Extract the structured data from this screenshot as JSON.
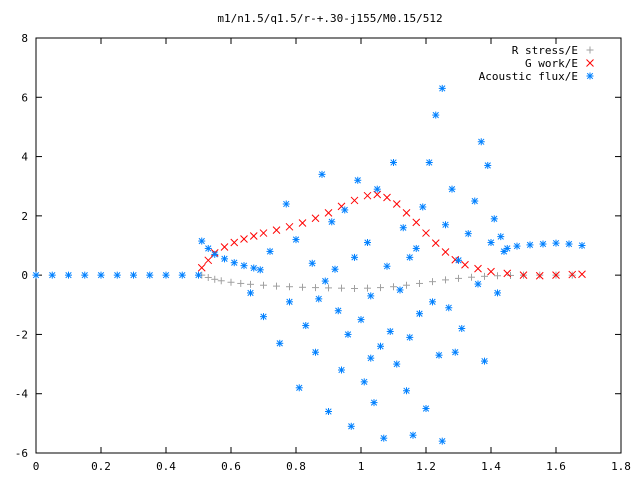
{
  "chart_data": {
    "type": "scatter",
    "title": "m1/n1.5/q1.5/r-+.30-j155/M0.15/512",
    "xlabel": "",
    "ylabel": "",
    "xlim": [
      0,
      1.8
    ],
    "ylim": [
      -6,
      8
    ],
    "x_ticks": [
      "0",
      "0.2",
      "0.4",
      "0.6",
      "0.8",
      "1",
      "1.2",
      "1.4",
      "1.6",
      "1.8"
    ],
    "y_ticks": [
      "-6",
      "-4",
      "-2",
      "0",
      "2",
      "4",
      "6",
      "8"
    ],
    "grid": false,
    "legend_position": "top-right",
    "series": [
      {
        "name": "R stress/E",
        "marker": "plus",
        "color": "#a0a0a0",
        "points": [
          [
            0.51,
            0.0
          ],
          [
            0.53,
            -0.08
          ],
          [
            0.55,
            -0.14
          ],
          [
            0.57,
            -0.19
          ],
          [
            0.6,
            -0.24
          ],
          [
            0.63,
            -0.28
          ],
          [
            0.66,
            -0.31
          ],
          [
            0.7,
            -0.34
          ],
          [
            0.74,
            -0.37
          ],
          [
            0.78,
            -0.39
          ],
          [
            0.82,
            -0.41
          ],
          [
            0.86,
            -0.42
          ],
          [
            0.9,
            -0.43
          ],
          [
            0.94,
            -0.44
          ],
          [
            0.98,
            -0.45
          ],
          [
            1.02,
            -0.44
          ],
          [
            1.06,
            -0.42
          ],
          [
            1.1,
            -0.39
          ],
          [
            1.14,
            -0.34
          ],
          [
            1.18,
            -0.28
          ],
          [
            1.22,
            -0.22
          ],
          [
            1.26,
            -0.16
          ],
          [
            1.3,
            -0.11
          ],
          [
            1.34,
            -0.07
          ],
          [
            1.38,
            -0.04
          ],
          [
            1.42,
            -0.02
          ],
          [
            1.46,
            -0.01
          ],
          [
            1.5,
            0.0
          ],
          [
            1.55,
            0.0
          ],
          [
            1.6,
            0.0
          ],
          [
            1.65,
            0.0
          ]
        ]
      },
      {
        "name": "G work/E",
        "marker": "cross",
        "color": "#ff0000",
        "points": [
          [
            0.51,
            0.25
          ],
          [
            0.53,
            0.5
          ],
          [
            0.55,
            0.75
          ],
          [
            0.58,
            0.95
          ],
          [
            0.61,
            1.1
          ],
          [
            0.64,
            1.22
          ],
          [
            0.67,
            1.32
          ],
          [
            0.7,
            1.42
          ],
          [
            0.74,
            1.52
          ],
          [
            0.78,
            1.63
          ],
          [
            0.82,
            1.76
          ],
          [
            0.86,
            1.92
          ],
          [
            0.9,
            2.1
          ],
          [
            0.94,
            2.32
          ],
          [
            0.98,
            2.52
          ],
          [
            1.02,
            2.68
          ],
          [
            1.05,
            2.72
          ],
          [
            1.08,
            2.62
          ],
          [
            1.11,
            2.4
          ],
          [
            1.14,
            2.1
          ],
          [
            1.17,
            1.78
          ],
          [
            1.2,
            1.42
          ],
          [
            1.23,
            1.08
          ],
          [
            1.26,
            0.78
          ],
          [
            1.29,
            0.52
          ],
          [
            1.32,
            0.35
          ],
          [
            1.36,
            0.22
          ],
          [
            1.4,
            0.12
          ],
          [
            1.45,
            0.06
          ],
          [
            1.5,
            0.0
          ],
          [
            1.55,
            -0.02
          ],
          [
            1.6,
            0.0
          ],
          [
            1.65,
            0.02
          ],
          [
            1.68,
            0.03
          ]
        ]
      },
      {
        "name": "Acoustic flux/E",
        "marker": "star",
        "color": "#0080ff",
        "points": [
          [
            0.0,
            0.0
          ],
          [
            0.05,
            0.0
          ],
          [
            0.1,
            0.0
          ],
          [
            0.15,
            0.0
          ],
          [
            0.2,
            0.0
          ],
          [
            0.25,
            0.0
          ],
          [
            0.3,
            0.0
          ],
          [
            0.35,
            0.0
          ],
          [
            0.4,
            0.0
          ],
          [
            0.45,
            0.0
          ],
          [
            0.5,
            0.0
          ],
          [
            0.51,
            1.15
          ],
          [
            0.53,
            0.9
          ],
          [
            0.55,
            0.7
          ],
          [
            0.58,
            0.55
          ],
          [
            0.61,
            0.42
          ],
          [
            0.64,
            0.32
          ],
          [
            0.67,
            0.24
          ],
          [
            0.69,
            0.18
          ],
          [
            1.45,
            0.9
          ],
          [
            1.48,
            0.98
          ],
          [
            1.52,
            1.02
          ],
          [
            1.56,
            1.05
          ],
          [
            1.6,
            1.08
          ],
          [
            1.64,
            1.05
          ],
          [
            1.68,
            1.0
          ],
          [
            0.66,
            -0.6
          ],
          [
            0.7,
            -1.4
          ],
          [
            0.72,
            0.8
          ],
          [
            0.75,
            -2.3
          ],
          [
            0.77,
            2.4
          ],
          [
            0.78,
            -0.9
          ],
          [
            0.8,
            1.2
          ],
          [
            0.81,
            -3.8
          ],
          [
            0.83,
            -1.7
          ],
          [
            0.85,
            0.4
          ],
          [
            0.86,
            -2.6
          ],
          [
            0.88,
            3.4
          ],
          [
            0.89,
            -0.2
          ],
          [
            0.9,
            -4.6
          ],
          [
            0.91,
            1.8
          ],
          [
            0.93,
            -1.2
          ],
          [
            0.94,
            -3.2
          ],
          [
            0.95,
            2.2
          ],
          [
            0.96,
            -2.0
          ],
          [
            0.97,
            -5.1
          ],
          [
            0.98,
            0.6
          ],
          [
            0.99,
            3.2
          ],
          [
            1.0,
            -1.5
          ],
          [
            1.01,
            -3.6
          ],
          [
            1.02,
            1.1
          ],
          [
            1.03,
            -0.7
          ],
          [
            1.04,
            -4.3
          ],
          [
            1.05,
            2.9
          ],
          [
            1.06,
            -2.4
          ],
          [
            1.07,
            -5.5
          ],
          [
            1.08,
            0.3
          ],
          [
            1.09,
            -1.9
          ],
          [
            1.1,
            3.8
          ],
          [
            1.11,
            -3.0
          ],
          [
            1.12,
            -0.5
          ],
          [
            1.13,
            1.6
          ],
          [
            1.14,
            -3.9
          ],
          [
            1.15,
            -2.1
          ],
          [
            1.16,
            -5.4
          ],
          [
            1.17,
            0.9
          ],
          [
            1.18,
            -1.3
          ],
          [
            1.19,
            2.3
          ],
          [
            1.2,
            -4.5
          ],
          [
            1.21,
            3.8
          ],
          [
            1.22,
            -0.9
          ],
          [
            1.23,
            5.4
          ],
          [
            1.24,
            -2.7
          ],
          [
            1.25,
            6.3
          ],
          [
            1.25,
            -5.6
          ],
          [
            1.26,
            1.7
          ],
          [
            1.27,
            -1.1
          ],
          [
            1.28,
            2.9
          ],
          [
            1.29,
            -2.6
          ],
          [
            1.3,
            0.5
          ],
          [
            1.31,
            -1.8
          ],
          [
            1.33,
            1.4
          ],
          [
            1.35,
            2.5
          ],
          [
            1.36,
            -0.3
          ],
          [
            1.37,
            4.5
          ],
          [
            1.38,
            -2.9
          ],
          [
            1.39,
            3.7
          ],
          [
            1.4,
            1.1
          ],
          [
            1.41,
            1.9
          ],
          [
            1.42,
            -0.6
          ],
          [
            1.43,
            1.3
          ],
          [
            1.44,
            0.8
          ],
          [
            0.92,
            0.2
          ],
          [
            1.03,
            -2.8
          ],
          [
            0.87,
            -0.8
          ],
          [
            1.15,
            0.6
          ]
        ]
      }
    ]
  }
}
